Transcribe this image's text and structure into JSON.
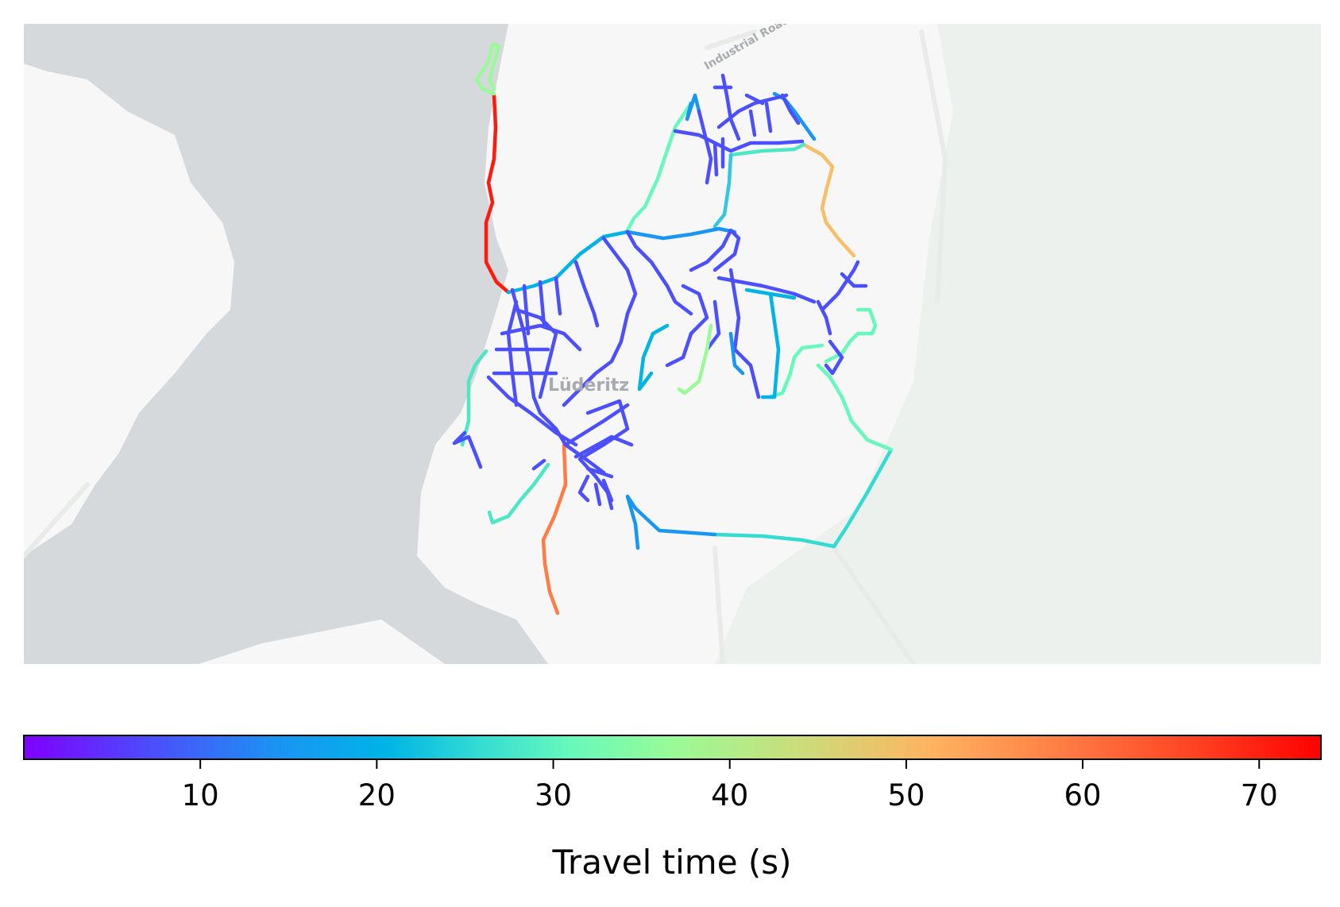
{
  "map": {
    "place_label": "Lüderitz",
    "road_label": "Industrial Road",
    "colors": {
      "water": "#d5d9dc",
      "land": "#f6f7f6",
      "land_green": "#edf1ed"
    }
  },
  "colorbar": {
    "label": "Travel time (s)",
    "colormap": "rainbow",
    "range": [
      0,
      73.5
    ],
    "ticks": [
      "10",
      "20",
      "30",
      "40",
      "50",
      "60",
      "70"
    ],
    "tick_values": [
      10,
      20,
      30,
      40,
      50,
      60,
      70
    ]
  },
  "chart_data": {
    "type": "heatmap",
    "title": "",
    "colorbar_label": "Travel time (s)",
    "value_range": [
      0,
      73.5
    ],
    "color_ticks": [
      10,
      20,
      30,
      40,
      50,
      60,
      70
    ]
  }
}
